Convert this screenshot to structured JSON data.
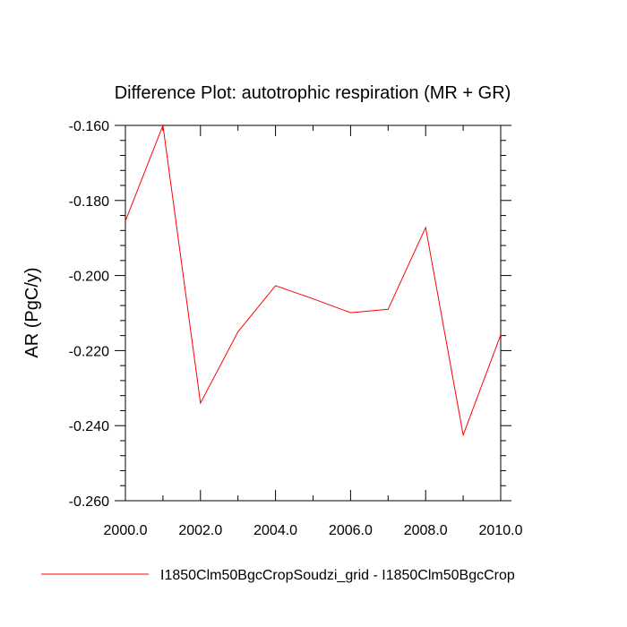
{
  "chart_data": {
    "type": "line",
    "title": "Difference Plot: autotrophic respiration (MR + GR)",
    "xlabel": "",
    "ylabel": "AR  (PgC/y)",
    "xlim": [
      2000,
      2010
    ],
    "ylim": [
      -0.26,
      -0.16
    ],
    "x_ticks": [
      "2000.0",
      "2002.0",
      "2004.0",
      "2006.0",
      "2008.0",
      "2010.0"
    ],
    "y_ticks": [
      "-0.160",
      "-0.180",
      "-0.200",
      "-0.220",
      "-0.240",
      "-0.260"
    ],
    "grid": false,
    "legend_position": "bottom",
    "series": [
      {
        "name": "I1850Clm50BgcCropSoudzi_grid - I1850Clm50BgcCrop",
        "color": "#ff0000",
        "x": [
          2000,
          2001,
          2002,
          2003,
          2004,
          2005,
          2006,
          2007,
          2008,
          2009,
          2010
        ],
        "y": [
          -0.1855,
          -0.16,
          -0.234,
          -0.215,
          -0.2027,
          -0.2062,
          -0.2099,
          -0.209,
          -0.1872,
          -0.2425,
          -0.2158
        ]
      }
    ]
  }
}
